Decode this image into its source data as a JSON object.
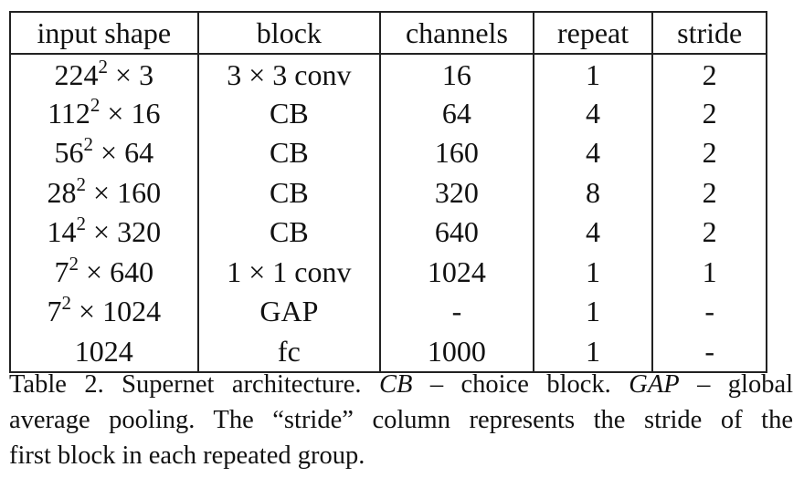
{
  "table": {
    "headers": [
      "input shape",
      "block",
      "channels",
      "repeat",
      "stride"
    ],
    "rows": [
      {
        "input_base": "224",
        "input_exp": "2",
        "input_mult": "3",
        "block": "3 × 3 conv",
        "channels": "16",
        "repeat": "1",
        "stride": "2"
      },
      {
        "input_base": "112",
        "input_exp": "2",
        "input_mult": "16",
        "block": "CB",
        "channels": "64",
        "repeat": "4",
        "stride": "2"
      },
      {
        "input_base": "56",
        "input_exp": "2",
        "input_mult": "64",
        "block": "CB",
        "channels": "160",
        "repeat": "4",
        "stride": "2"
      },
      {
        "input_base": "28",
        "input_exp": "2",
        "input_mult": "160",
        "block": "CB",
        "channels": "320",
        "repeat": "8",
        "stride": "2"
      },
      {
        "input_base": "14",
        "input_exp": "2",
        "input_mult": "320",
        "block": "CB",
        "channels": "640",
        "repeat": "4",
        "stride": "2"
      },
      {
        "input_base": "7",
        "input_exp": "2",
        "input_mult": "640",
        "block": "1 × 1 conv",
        "channels": "1024",
        "repeat": "1",
        "stride": "1"
      },
      {
        "input_base": "7",
        "input_exp": "2",
        "input_mult": "1024",
        "block": "GAP",
        "channels": "-",
        "repeat": "1",
        "stride": "-"
      },
      {
        "input_base": "1024",
        "input_exp": "",
        "input_mult": "",
        "block": "fc",
        "channels": "1000",
        "repeat": "1",
        "stride": "-"
      }
    ],
    "times_symbol": "×"
  },
  "caption": {
    "label": "Table 2.",
    "part1": " Supernet architecture. ",
    "term1": "CB",
    "part2": " – choice block. ",
    "term2": "GAP",
    "part3": " – global",
    "line2": "average pooling. The “stride” column represents the stride of the",
    "line3": "first block in each repeated group."
  }
}
